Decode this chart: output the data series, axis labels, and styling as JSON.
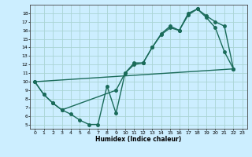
{
  "xlabel": "Humidex (Indice chaleur)",
  "background_color": "#cceeff",
  "grid_color": "#aad4d4",
  "line_color": "#1a6b5a",
  "xlim": [
    -0.5,
    23.5
  ],
  "ylim": [
    4.5,
    19.0
  ],
  "xticks": [
    0,
    1,
    2,
    3,
    4,
    5,
    6,
    7,
    8,
    9,
    10,
    11,
    12,
    13,
    14,
    15,
    16,
    17,
    18,
    19,
    20,
    21,
    22,
    23
  ],
  "yticks": [
    5,
    6,
    7,
    8,
    9,
    10,
    11,
    12,
    13,
    14,
    15,
    16,
    17,
    18
  ],
  "line1_x": [
    0,
    1,
    2,
    3,
    4,
    5,
    6,
    7,
    8,
    9,
    10,
    11,
    12,
    13,
    14,
    15,
    16,
    17,
    18,
    19,
    20,
    21,
    22
  ],
  "line1_y": [
    10,
    8.5,
    7.5,
    6.7,
    6.2,
    5.5,
    5.0,
    5.0,
    9.5,
    6.3,
    11.0,
    12.2,
    12.2,
    14.0,
    15.6,
    16.5,
    16.0,
    18.0,
    18.5,
    17.5,
    16.3,
    13.5,
    11.5
  ],
  "line2_x": [
    0,
    1,
    2,
    3,
    9,
    10,
    11,
    12,
    13,
    14,
    15,
    16,
    17,
    18,
    19,
    20,
    21,
    22
  ],
  "line2_y": [
    10,
    8.5,
    7.5,
    6.7,
    9.0,
    11.0,
    12.0,
    12.2,
    14.0,
    15.5,
    16.3,
    16.0,
    17.8,
    18.5,
    17.7,
    17.0,
    16.5,
    11.5
  ],
  "line3_x": [
    0,
    22
  ],
  "line3_y": [
    10,
    11.5
  ],
  "marker_size": 2.5,
  "line_width": 1.0
}
